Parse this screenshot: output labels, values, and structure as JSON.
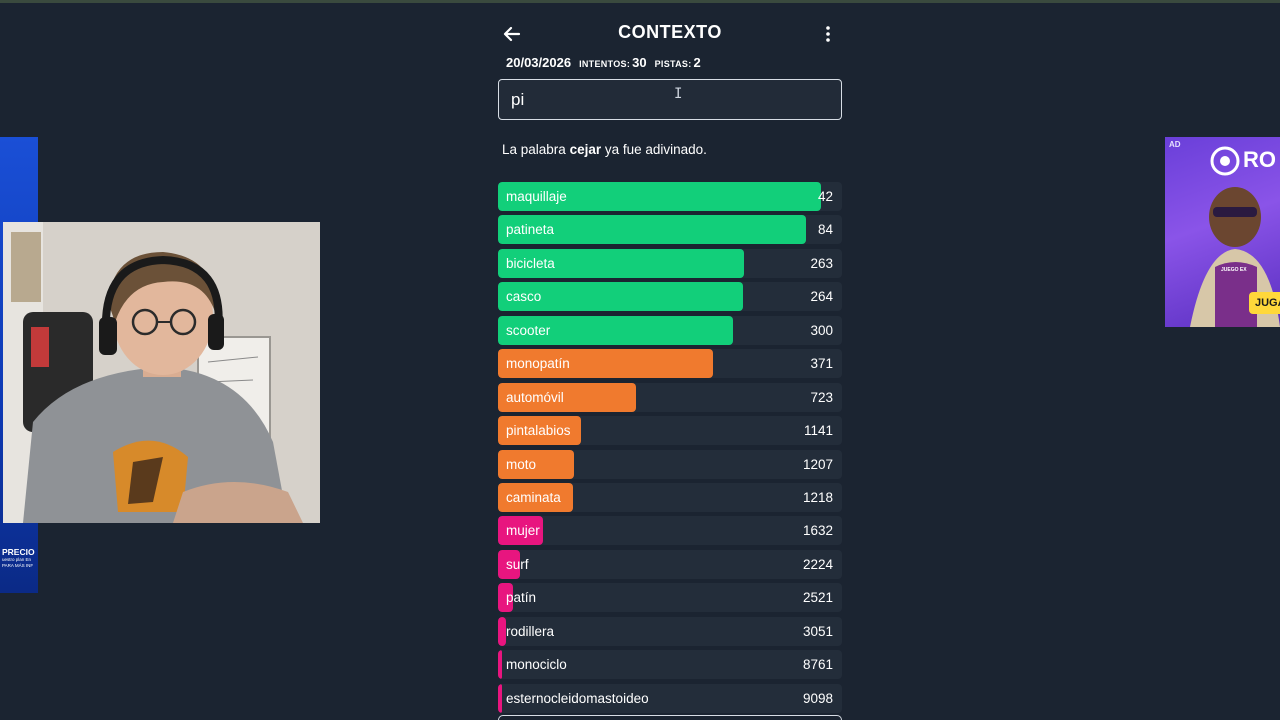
{
  "header": {
    "title": "CONTEXTO"
  },
  "stats": {
    "date": "20/03/2026",
    "attempts_label": "INTENTOS:",
    "attempts_value": "30",
    "hints_label": "PISTAS:",
    "hints_value": "2"
  },
  "input": {
    "value": "pi"
  },
  "notice": {
    "before": "La palabra ",
    "word": "cejar",
    "after": " ya fue adivinado."
  },
  "colors": {
    "green": "#12cf7a",
    "orange": "#f07a2e",
    "pink": "#e8157f",
    "row_bg": "#232d3a",
    "page_bg": "#1b2431"
  },
  "guesses": [
    {
      "word": "maquillaje",
      "distance": 42,
      "fill": 0.94,
      "color": "green"
    },
    {
      "word": "patineta",
      "distance": 84,
      "fill": 0.895,
      "color": "green"
    },
    {
      "word": "bicicleta",
      "distance": 263,
      "fill": 0.715,
      "color": "green"
    },
    {
      "word": "casco",
      "distance": 264,
      "fill": 0.713,
      "color": "green"
    },
    {
      "word": "scooter",
      "distance": 300,
      "fill": 0.683,
      "color": "green"
    },
    {
      "word": "monopatín",
      "distance": 371,
      "fill": 0.625,
      "color": "orange"
    },
    {
      "word": "automóvil",
      "distance": 723,
      "fill": 0.4,
      "color": "orange"
    },
    {
      "word": "pintalabios",
      "distance": 1141,
      "fill": 0.24,
      "color": "orange"
    },
    {
      "word": "moto",
      "distance": 1207,
      "fill": 0.222,
      "color": "orange"
    },
    {
      "word": "caminata",
      "distance": 1218,
      "fill": 0.218,
      "color": "orange"
    },
    {
      "word": "mujer",
      "distance": 1632,
      "fill": 0.13,
      "color": "pink"
    },
    {
      "word": "surf",
      "distance": 2224,
      "fill": 0.063,
      "color": "pink"
    },
    {
      "word": "patín",
      "distance": 2521,
      "fill": 0.043,
      "color": "pink"
    },
    {
      "word": "rodillera",
      "distance": 3051,
      "fill": 0.022,
      "color": "pink"
    },
    {
      "word": "monociclo",
      "distance": 8761,
      "fill": 0.012,
      "color": "pink"
    },
    {
      "word": "esternocleidomastoideo",
      "distance": 9098,
      "fill": 0.011,
      "color": "pink"
    }
  ],
  "right_ad": {
    "tag": "AD",
    "brand": "RO",
    "cta": "JUGAR A",
    "mini": "JUEGO EX"
  },
  "left_ad": {
    "headline": "PRECIO",
    "sub1": "uestro plan En",
    "sub2": "PARA MÁS INF"
  }
}
